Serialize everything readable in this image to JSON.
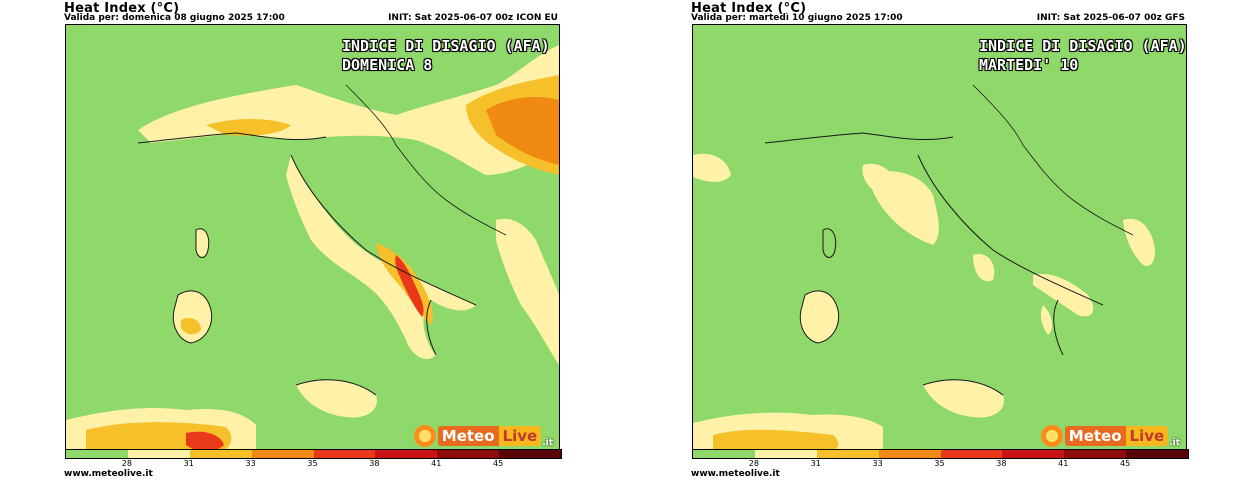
{
  "panels": [
    {
      "title": "Heat Index (°C)",
      "valid": "Valida per: domenica 08 giugno 2025 17:00",
      "init": "INIT: Sat 2025-06-07 00z ICON EU",
      "overlay_line1": "INDICE DI DISAGIO (AFA)",
      "overlay_line2": "DOMENICA 8",
      "footer": "www.meteolive.it"
    },
    {
      "title": "Heat Index (°C)",
      "valid": "Valida per: martedì 10 giugno 2025 17:00",
      "init": "INIT: Sat 2025-06-07 00z GFS",
      "overlay_line1": "INDICE DI DISAGIO (AFA)",
      "overlay_line2": "MARTEDI' 10",
      "footer": "www.meteolive.it"
    }
  ],
  "logo": {
    "part1": "Meteo",
    "part2": "Live",
    "part3": ".it"
  },
  "colorbar": {
    "ticks": [
      "28",
      "31",
      "33",
      "35",
      "38",
      "41",
      "45"
    ],
    "colors": [
      "#8fd86a",
      "#fff2a8",
      "#f6c02a",
      "#f08a12",
      "#e83a1a",
      "#c81414",
      "#8f0a0a",
      "#5a0505"
    ]
  }
}
